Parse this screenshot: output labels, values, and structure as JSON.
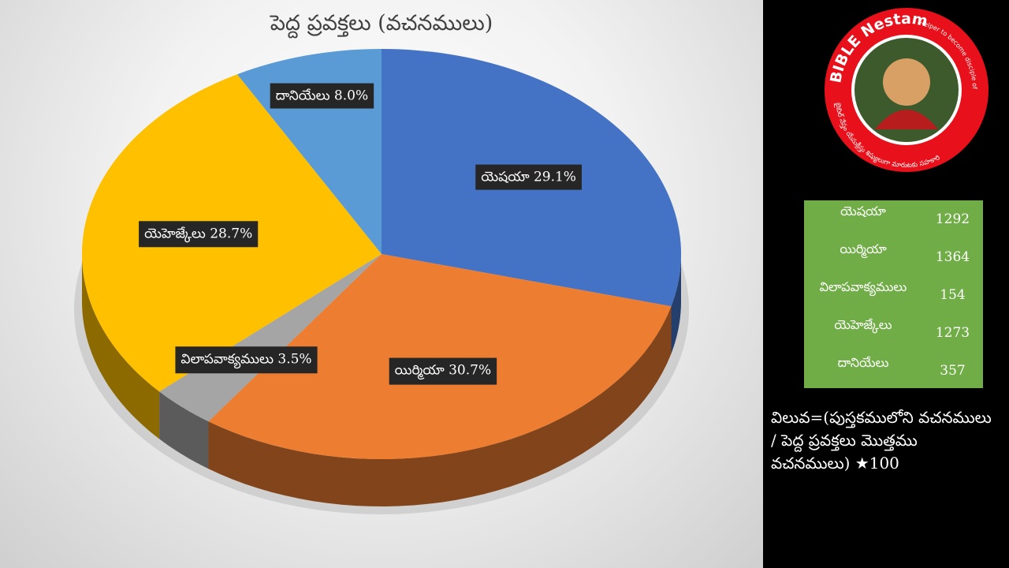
{
  "chart_data": {
    "type": "pie",
    "title": "పెద్ద ప్రవక్తలు (వచనములు)",
    "categories": [
      "యెషయా",
      "యిర్మియా",
      "విలాపవాక్యములు",
      "యెహెజ్కేలు",
      "దానియేలు"
    ],
    "values": [
      29.1,
      30.7,
      3.5,
      28.7,
      8.0
    ],
    "labels": [
      "యెషయా 29.1%",
      "యిర్మియా 30.7%",
      "విలాపవాక్యములు 3.5%",
      "యెహెజ్కేలు 28.7%",
      "దానియేలు 8.0%"
    ],
    "colors": [
      "#4472c4",
      "#ed7d31",
      "#a5a5a5",
      "#ffc000",
      "#5b9bd5"
    ],
    "style": "3d"
  },
  "table": {
    "rows": [
      {
        "name": "యెషయా",
        "value": "1292"
      },
      {
        "name": "యిర్మియా",
        "value": "1364"
      },
      {
        "name": "విలాపవాక్యములు",
        "value": "154"
      },
      {
        "name": "యెహెజ్కేలు",
        "value": "1273"
      },
      {
        "name": "దానియేలు",
        "value": "357"
      }
    ],
    "color": "#70ad47"
  },
  "logo": {
    "name": "BIBLE Nestam",
    "tagline": "Helper to become disciple of JESUS CHRIST",
    "telugu_text": "బైబిల్ నేస్తం యేసుక్రీస్తు శిష్యులుగా మారుటకు సహకారి",
    "color": "#e8101a"
  },
  "formula": {
    "line1": "విలువ=(పుస్తకములోని వచనములు",
    "line2": "/ పెద్ద ప్రవక్తలు మొత్తము",
    "line3": "వచనములు) ★100"
  }
}
